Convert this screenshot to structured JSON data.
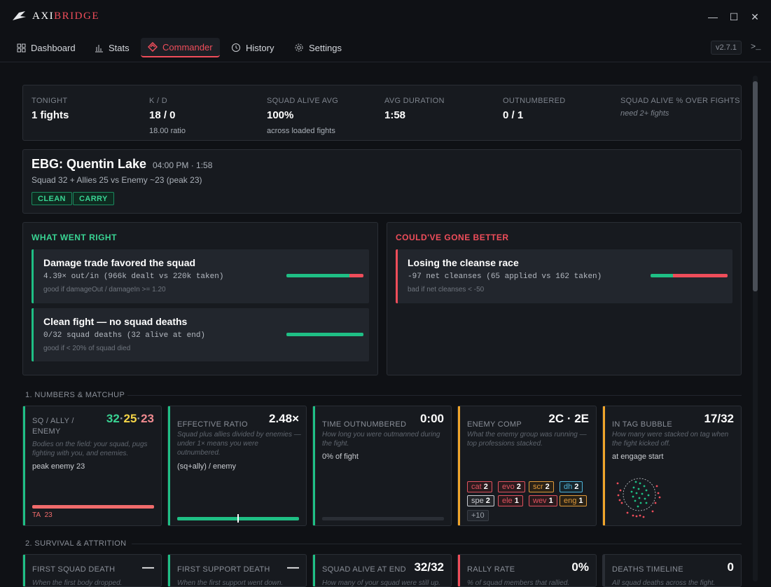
{
  "app": {
    "brand_prefix": "AXI",
    "brand_suffix": "BRIDGE",
    "version": "v2.7.1",
    "terminal": ">_"
  },
  "nav": {
    "tabs": [
      {
        "label": "Dashboard",
        "icon": "dashboard-icon"
      },
      {
        "label": "Stats",
        "icon": "bar-chart-icon"
      },
      {
        "label": "Commander",
        "icon": "commander-icon",
        "active": true
      },
      {
        "label": "History",
        "icon": "clock-icon"
      },
      {
        "label": "Settings",
        "icon": "gear-icon"
      }
    ]
  },
  "summary": [
    {
      "label": "TONIGHT",
      "value": "1 fights",
      "sub": ""
    },
    {
      "label": "K / D",
      "value": "18 / 0",
      "sub": "18.00 ratio"
    },
    {
      "label": "SQUAD ALIVE AVG",
      "value": "100%",
      "sub": "across loaded fights"
    },
    {
      "label": "AVG DURATION",
      "value": "1:58",
      "sub": ""
    },
    {
      "label": "OUTNUMBERED",
      "value": "0 / 1",
      "sub": ""
    },
    {
      "label": "SQUAD ALIVE % OVER FIGHTS",
      "value": "",
      "sub": "need 2+ fights"
    }
  ],
  "fight": {
    "title": "EBG: Quentin Lake",
    "time": "04:00 PM · 1:58",
    "sub": "Squad 32 + Allies 25 vs Enemy ~23 (peak 23)",
    "badges": [
      "CLEAN",
      "CARRY"
    ]
  },
  "right": {
    "title": "WHAT WENT RIGHT",
    "items": [
      {
        "title": "Damage trade favored the squad",
        "detail": "4.39× out/in (966k dealt vs 220k taken)",
        "hint": "good if damageOut / damageIn >= 1.20",
        "good_fraction": 0.815
      },
      {
        "title": "Clean fight — no squad deaths",
        "detail": "0/32 squad deaths (32 alive at end)",
        "hint": "good if < 20% of squad died",
        "good_fraction": 1.0
      }
    ]
  },
  "better": {
    "title": "COULD'VE GONE BETTER",
    "items": [
      {
        "title": "Losing the cleanse race",
        "detail": "-97 net cleanses (65 applied vs 162 taken)",
        "hint": "bad if net cleanses < -50",
        "good_fraction": 0.29
      }
    ]
  },
  "sections": {
    "s1": "1. NUMBERS & MATCHUP",
    "s2": "2. SURVIVAL & ATTRITION"
  },
  "numbers": {
    "sq": {
      "title": "SQ / ALLY / ENEMY",
      "squad": "32",
      "ally": "25",
      "enemy": "23",
      "desc": "Bodies on the field: your squad, pugs fighting with you, and enemies.",
      "extra": "peak enemy 23",
      "ta_label": "TA",
      "ta_value": "23"
    },
    "eff": {
      "title": "EFFECTIVE RATIO",
      "value": "2.48×",
      "desc": "Squad plus allies divided by enemies — under 1× means you were outnumbered.",
      "extra": "(sq+ally) / enemy",
      "marker_fraction": 0.5
    },
    "time": {
      "title": "TIME OUTNUMBERED",
      "value": "0:00",
      "desc": "How long you were outmanned during the fight.",
      "extra": "0% of fight",
      "fill": 0
    },
    "comp": {
      "title": "ENEMY COMP",
      "value": "2C · 2E",
      "desc": "What the enemy group was running — top professions stacked.",
      "chips": [
        {
          "name": "cat",
          "count": "2",
          "color": "#e0525f"
        },
        {
          "name": "evo",
          "count": "2",
          "color": "#e0525f"
        },
        {
          "name": "scr",
          "count": "2",
          "color": "#e09a3a"
        },
        {
          "name": "dh",
          "count": "2",
          "color": "#4fb3d9"
        },
        {
          "name": "spe",
          "count": "2",
          "color": "#c9ccd1"
        },
        {
          "name": "ele",
          "count": "1",
          "color": "#e0525f"
        },
        {
          "name": "wev",
          "count": "1",
          "color": "#e0525f"
        },
        {
          "name": "eng",
          "count": "1",
          "color": "#e09a3a"
        }
      ],
      "more": "+10"
    },
    "tag": {
      "title": "IN TAG BUBBLE",
      "value": "17/32",
      "desc": "How many were stacked on tag when the fight kicked off.",
      "extra": "at engage start"
    }
  },
  "survival": [
    {
      "title": "FIRST SQUAD DEATH",
      "value": "—",
      "desc": "When the first body dropped."
    },
    {
      "title": "FIRST SUPPORT DEATH",
      "value": "—",
      "desc": "When the first support went down."
    },
    {
      "title": "SQUAD ALIVE AT END",
      "value": "32/32",
      "desc": "How many of your squad were still up."
    },
    {
      "title": "RALLY RATE",
      "value": "0%",
      "desc": "% of squad members that rallied."
    },
    {
      "title": "DEATHS TIMELINE",
      "value": "0",
      "desc": "All squad deaths across the fight."
    }
  ],
  "colors": {
    "accent": "#ef4d5a",
    "good": "#1fbf85",
    "bad": "#ef4d5a",
    "amber": "#f0a52a",
    "yellow": "#f5d547",
    "pink": "#f08a8f"
  }
}
